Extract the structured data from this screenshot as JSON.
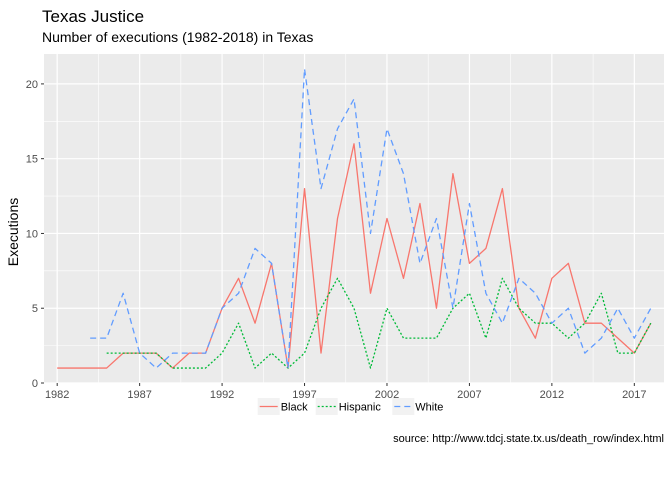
{
  "chart_data": {
    "type": "line",
    "title": "Texas Justice",
    "subtitle": "Number of executions (1982-2018) in Texas",
    "xlabel": "",
    "ylabel": "Executions",
    "caption": "source: http://www.tdcj.state.tx.us/death_row/index.html",
    "xlim": [
      1981.2,
      2018.8
    ],
    "ylim": [
      0,
      22
    ],
    "x_ticks": [
      1982,
      1987,
      1992,
      1997,
      2002,
      2007,
      2012,
      2017
    ],
    "y_ticks": [
      0,
      5,
      10,
      15,
      20
    ],
    "grid": true,
    "legend_position": "bottom",
    "series": [
      {
        "name": "Black",
        "color": "#F8766D",
        "dash": "solid",
        "x": [
          1982,
          1983,
          1984,
          1985,
          1986,
          1987,
          1988,
          1989,
          1990,
          1991,
          1992,
          1993,
          1994,
          1995,
          1996,
          1997,
          1998,
          1999,
          2000,
          2001,
          2002,
          2003,
          2004,
          2005,
          2006,
          2007,
          2008,
          2009,
          2010,
          2011,
          2012,
          2013,
          2014,
          2015,
          2016,
          2017,
          2018
        ],
        "values": [
          1,
          1,
          1,
          1,
          2,
          2,
          2,
          1,
          2,
          2,
          5,
          7,
          4,
          8,
          1,
          13,
          2,
          11,
          16,
          6,
          11,
          7,
          12,
          5,
          14,
          8,
          9,
          13,
          5,
          3,
          7,
          8,
          4,
          4,
          3,
          2,
          4
        ]
      },
      {
        "name": "Hispanic",
        "color": "#00BA38",
        "dash": "dotted",
        "x": [
          1985,
          1986,
          1987,
          1988,
          1989,
          1990,
          1991,
          1992,
          1993,
          1994,
          1995,
          1996,
          1997,
          1998,
          1999,
          2000,
          2001,
          2002,
          2003,
          2004,
          2005,
          2006,
          2007,
          2008,
          2009,
          2010,
          2011,
          2012,
          2013,
          2014,
          2015,
          2016,
          2017,
          2018
        ],
        "values": [
          2,
          2,
          2,
          2,
          1,
          1,
          1,
          2,
          4,
          1,
          2,
          1,
          2,
          5,
          7,
          5,
          1,
          5,
          3,
          3,
          3,
          5,
          6,
          3,
          7,
          5,
          4,
          4,
          3,
          4,
          6,
          2,
          2,
          4
        ]
      },
      {
        "name": "White",
        "color": "#619CFF",
        "dash": "dashed",
        "x": [
          1984,
          1985,
          1986,
          1987,
          1988,
          1989,
          1990,
          1991,
          1992,
          1993,
          1994,
          1995,
          1996,
          1997,
          1998,
          1999,
          2000,
          2001,
          2002,
          2003,
          2004,
          2005,
          2006,
          2007,
          2008,
          2009,
          2010,
          2011,
          2012,
          2013,
          2014,
          2015,
          2016,
          2017,
          2018
        ],
        "values": [
          3,
          3,
          6,
          2,
          1,
          2,
          2,
          2,
          5,
          6,
          9,
          8,
          1,
          21,
          13,
          17,
          19,
          10,
          17,
          14,
          8,
          11,
          5,
          12,
          6,
          4,
          7,
          6,
          4,
          5,
          2,
          3,
          5,
          3,
          5
        ]
      }
    ]
  }
}
